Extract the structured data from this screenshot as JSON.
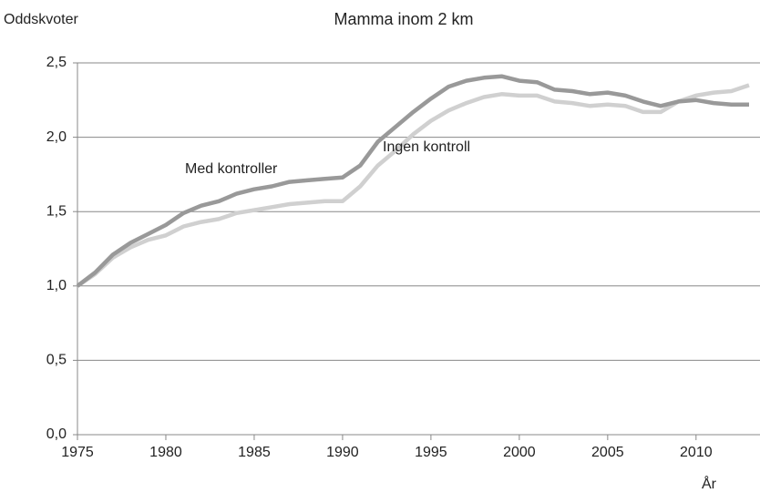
{
  "chart_data": {
    "type": "line",
    "title": "Mamma inom 2 km",
    "y_label": "Oddskvoter",
    "x_label": "År",
    "x": [
      1975,
      1976,
      1977,
      1978,
      1979,
      1980,
      1981,
      1982,
      1983,
      1984,
      1985,
      1986,
      1987,
      1988,
      1989,
      1990,
      1991,
      1992,
      1993,
      1994,
      1995,
      1996,
      1997,
      1998,
      1999,
      2000,
      2001,
      2002,
      2003,
      2004,
      2005,
      2006,
      2007,
      2008,
      2009,
      2010,
      2011,
      2012,
      2013
    ],
    "series": [
      {
        "name": "Ingen kontroll",
        "color": "#d0d0d0",
        "values": [
          1.0,
          1.08,
          1.19,
          1.26,
          1.31,
          1.34,
          1.4,
          1.43,
          1.45,
          1.49,
          1.51,
          1.53,
          1.55,
          1.56,
          1.57,
          1.57,
          1.67,
          1.81,
          1.91,
          2.02,
          2.11,
          2.18,
          2.23,
          2.27,
          2.29,
          2.28,
          2.28,
          2.24,
          2.23,
          2.21,
          2.22,
          2.21,
          2.17,
          2.17,
          2.24,
          2.28,
          2.3,
          2.31,
          2.35
        ]
      },
      {
        "name": "Med kontroller",
        "color": "#999999",
        "values": [
          1.0,
          1.09,
          1.21,
          1.29,
          1.35,
          1.41,
          1.49,
          1.54,
          1.57,
          1.62,
          1.65,
          1.67,
          1.7,
          1.71,
          1.72,
          1.73,
          1.81,
          1.97,
          2.07,
          2.17,
          2.26,
          2.34,
          2.38,
          2.4,
          2.41,
          2.38,
          2.37,
          2.32,
          2.31,
          2.29,
          2.3,
          2.28,
          2.24,
          2.21,
          2.24,
          2.25,
          2.23,
          2.22,
          2.22
        ]
      }
    ],
    "xlim": [
      1975,
      2013
    ],
    "xticks": [
      1975,
      1980,
      1985,
      1990,
      1995,
      2000,
      2005,
      2010
    ],
    "ylim": [
      0,
      2.5
    ],
    "yticks": [
      {
        "value": 0,
        "label": "0,0"
      },
      {
        "value": 0.5,
        "label": "0,5"
      },
      {
        "value": 1,
        "label": "1,0"
      },
      {
        "value": 1.5,
        "label": "1,5"
      },
      {
        "value": 2,
        "label": "2,0"
      },
      {
        "value": 2.5,
        "label": "2,5"
      }
    ],
    "grid": true
  }
}
